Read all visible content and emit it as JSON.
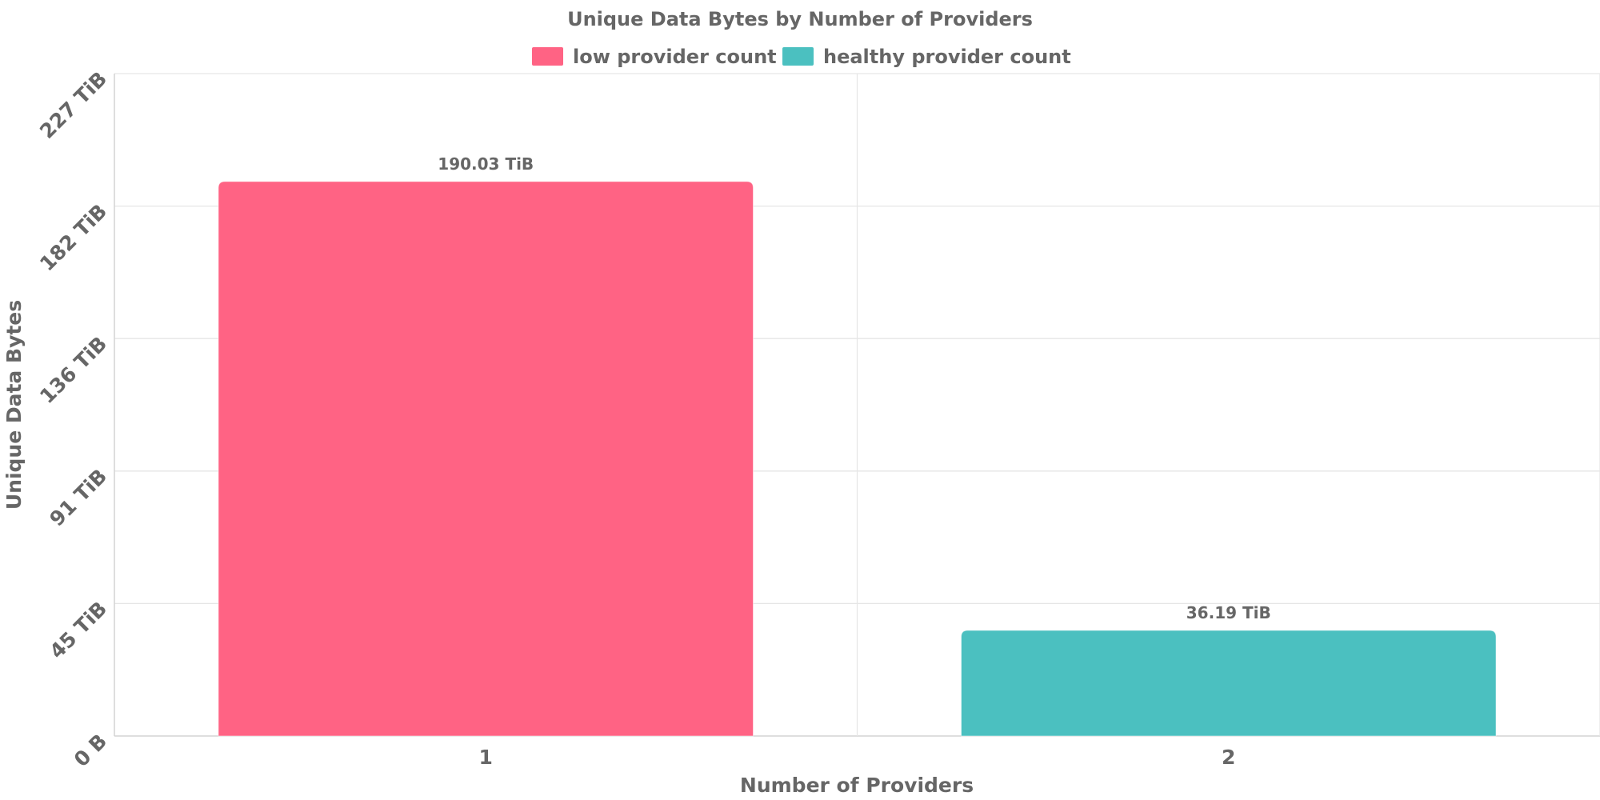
{
  "chart_data": {
    "type": "bar",
    "title": "Unique Data Bytes by Number of Providers",
    "xlabel": "Number of Providers",
    "ylabel": "Unique Data Bytes",
    "categories": [
      "1",
      "2"
    ],
    "values": [
      190.03,
      36.19
    ],
    "value_unit": "TiB",
    "data_labels": [
      "190.03 TiB",
      "36.19 TiB"
    ],
    "bar_colors": [
      "#ff6384",
      "#4bc0c0"
    ],
    "series": [
      {
        "name": "low provider count",
        "color": "#ff6384"
      },
      {
        "name": "healthy provider count",
        "color": "#4bc0c0"
      }
    ],
    "yticks": [
      {
        "value": 0,
        "label": "0 B"
      },
      {
        "value": 45.4,
        "label": "45 TiB"
      },
      {
        "value": 90.8,
        "label": "91 TiB"
      },
      {
        "value": 136.2,
        "label": "136 TiB"
      },
      {
        "value": 181.6,
        "label": "182 TiB"
      },
      {
        "value": 227,
        "label": "227 TiB"
      }
    ],
    "ylim": [
      0,
      227
    ],
    "grid": true,
    "legend_position": "top"
  }
}
